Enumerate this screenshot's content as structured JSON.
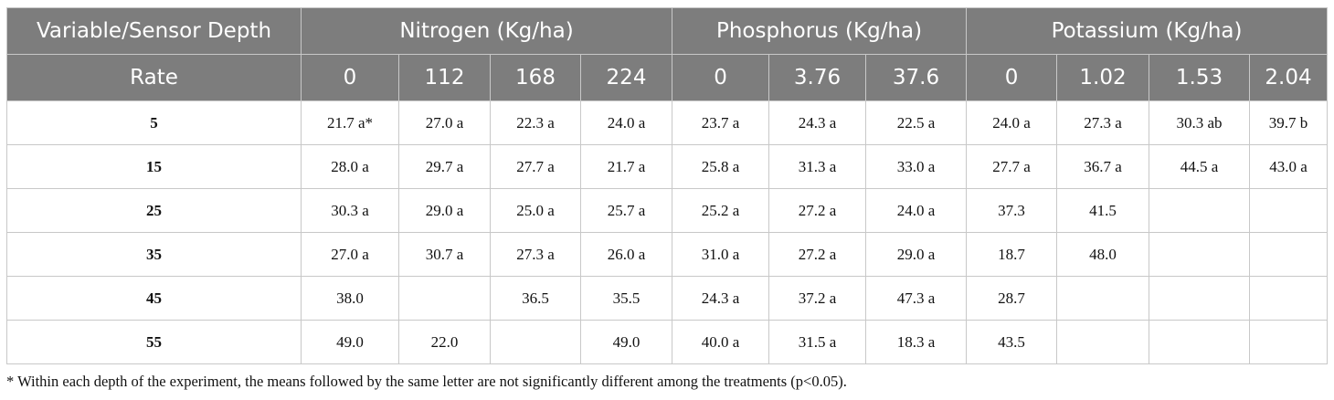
{
  "table": {
    "header_row1": {
      "variable_label": "Variable/Sensor Depth",
      "groups": [
        "Nitrogen (Kg/ha)",
        "Phosphorus (Kg/ha)",
        "Potassium (Kg/ha)"
      ]
    },
    "header_row2": {
      "rate_label": "Rate",
      "rates": [
        "0",
        "112",
        "168",
        "224",
        "0",
        "3.76",
        "37.6",
        "0",
        "1.02",
        "1.53",
        "2.04"
      ]
    },
    "rows": [
      {
        "depth": "5",
        "cells": [
          "21.7 a*",
          "27.0 a",
          "22.3 a",
          "24.0 a",
          "23.7 a",
          "24.3 a",
          "22.5 a",
          "24.0 a",
          "27.3 a",
          "30.3 ab",
          "39.7 b"
        ]
      },
      {
        "depth": "15",
        "cells": [
          "28.0 a",
          "29.7 a",
          "27.7 a",
          "21.7 a",
          "25.8 a",
          "31.3 a",
          "33.0 a",
          "27.7 a",
          "36.7 a",
          "44.5 a",
          "43.0 a"
        ]
      },
      {
        "depth": "25",
        "cells": [
          "30.3 a",
          "29.0 a",
          "25.0 a",
          "25.7 a",
          "25.2 a",
          "27.2 a",
          "24.0 a",
          "37.3",
          "41.5",
          "",
          ""
        ]
      },
      {
        "depth": "35",
        "cells": [
          "27.0 a",
          "30.7 a",
          "27.3 a",
          "26.0 a",
          "31.0 a",
          "27.2 a",
          "29.0 a",
          "18.7",
          "48.0",
          "",
          ""
        ]
      },
      {
        "depth": "45",
        "cells": [
          "38.0",
          "",
          "36.5",
          "35.5",
          "24.3 a",
          "37.2 a",
          "47.3 a",
          "28.7",
          "",
          "",
          ""
        ]
      },
      {
        "depth": "55",
        "cells": [
          "49.0",
          "22.0",
          "",
          "49.0",
          "40.0 a",
          "31.5 a",
          "18.3 a",
          "43.5",
          "",
          "",
          ""
        ]
      }
    ]
  },
  "footnote": "* Within each depth of the experiment, the means followed by the same letter are not significantly different among the treatments (p<0.05)."
}
